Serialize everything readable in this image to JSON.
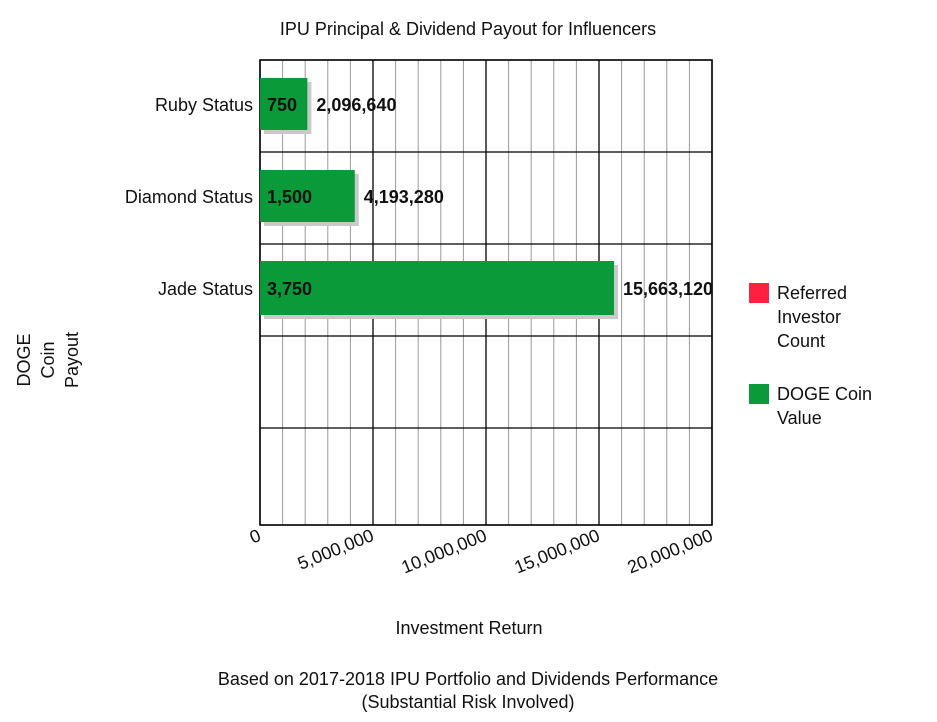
{
  "colors": {
    "doge_bar": "#0a9a3a",
    "referred_swatch": "#ff1f3f",
    "grid": "#000000",
    "shadow": "#c9c9c9"
  },
  "chart_data": {
    "type": "bar",
    "orientation": "horizontal",
    "title": "IPU Principal & Dividend Payout for Influencers",
    "xlabel": "Investment Return",
    "ylabel": "DOGE Coin Payout",
    "ylabel_lines": [
      "DOGE",
      "Coin",
      "Payout"
    ],
    "categories": [
      "Ruby Status",
      "Diamond Status",
      "Jade Status"
    ],
    "series": [
      {
        "name": "DOGE Coin Value",
        "values": [
          2096640,
          4193280,
          15663120
        ],
        "value_labels": [
          "2,096,640",
          "4,193,280",
          "15,663,120"
        ],
        "inner_labels": [
          "750",
          "1,500",
          "3,750"
        ]
      }
    ],
    "xlim": [
      0,
      20000000
    ],
    "x_ticks": [
      0,
      5000000,
      10000000,
      15000000,
      20000000
    ],
    "x_tick_labels": [
      "0",
      "5,000,000",
      "10,000,000",
      "15,000,000",
      "20,000,000"
    ],
    "grid": true,
    "legend_position": "right",
    "legend": [
      {
        "label_lines": [
          "Referred",
          "Investor",
          "Count"
        ],
        "color": "#ff1f3f"
      },
      {
        "label_lines": [
          "DOGE Coin",
          "Value"
        ],
        "color": "#0a9a3a"
      }
    ],
    "footnote": [
      "Based on 2017-2018 IPU Portfolio and Dividends Performance",
      "(Substantial Risk Involved)"
    ]
  }
}
